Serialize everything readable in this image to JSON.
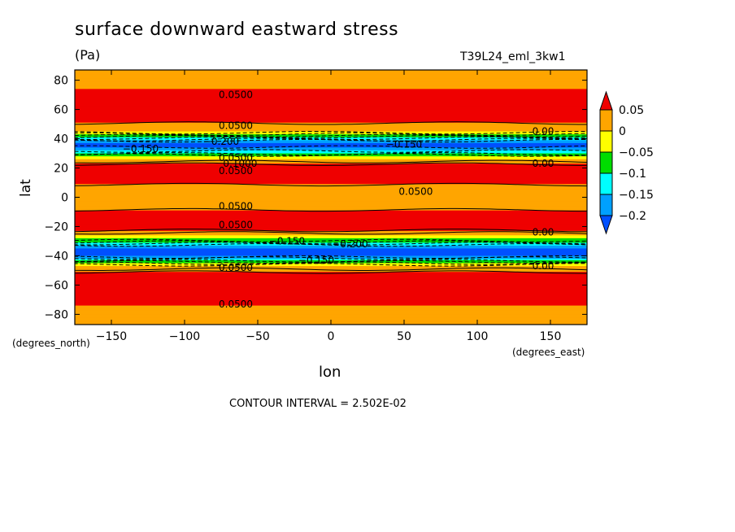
{
  "header": {
    "title": "surface downward eastward stress",
    "units": "(Pa)",
    "run": "T39L24_eml_3kw1"
  },
  "axes": {
    "ylabel": "lat",
    "ylabel_units": "(degrees_north)",
    "xlabel": "lon",
    "xlabel_units": "(degrees_east)"
  },
  "footer": {
    "contour_interval": "CONTOUR INTERVAL = 2.502E-02"
  },
  "chart_data": {
    "type": "heatmap",
    "title": "surface downward eastward stress",
    "subtitle": "(Pa)",
    "xlabel": "lon",
    "ylabel": "lat",
    "xlim": [
      -175,
      175
    ],
    "ylim": [
      -87,
      87
    ],
    "xticks": [
      -150,
      -100,
      -50,
      0,
      50,
      100,
      150
    ],
    "xtick_labels": [
      "−150",
      "−100",
      "−50",
      "0",
      "50",
      "100",
      "150"
    ],
    "yticks": [
      80,
      60,
      40,
      20,
      0,
      -20,
      -40,
      -60,
      -80
    ],
    "ytick_labels": [
      "80",
      "60",
      "40",
      "20",
      "0",
      "−20",
      "−40",
      "−60",
      "−80"
    ],
    "colorbar": {
      "levels": [
        "0.05",
        "0",
        "−0.05",
        "−0.1",
        "−0.15",
        "−0.2"
      ],
      "colors": [
        "#ef0000",
        "#ffa500",
        "#ffff00",
        "#00dd00",
        "#00ffff",
        "#00a0ff",
        "#0050ff"
      ]
    },
    "zonal_profile": [
      {
        "lat": 87,
        "value": 0.03
      },
      {
        "lat": 78,
        "value": 0.04
      },
      {
        "lat": 70,
        "value": 0.06
      },
      {
        "lat": 60,
        "value": 0.07
      },
      {
        "lat": 52,
        "value": 0.06
      },
      {
        "lat": 48,
        "value": 0.03
      },
      {
        "lat": 45,
        "value": 0.0
      },
      {
        "lat": 42,
        "value": -0.08
      },
      {
        "lat": 38,
        "value": -0.19
      },
      {
        "lat": 35,
        "value": -0.21
      },
      {
        "lat": 31,
        "value": -0.14
      },
      {
        "lat": 28,
        "value": -0.05
      },
      {
        "lat": 26,
        "value": 0.0
      },
      {
        "lat": 22,
        "value": 0.06
      },
      {
        "lat": 14,
        "value": 0.07
      },
      {
        "lat": 6,
        "value": 0.04
      },
      {
        "lat": 0,
        "value": 0.03
      },
      {
        "lat": -6,
        "value": 0.04
      },
      {
        "lat": -14,
        "value": 0.07
      },
      {
        "lat": -22,
        "value": 0.06
      },
      {
        "lat": -26,
        "value": 0.0
      },
      {
        "lat": -29,
        "value": -0.06
      },
      {
        "lat": -33,
        "value": -0.16
      },
      {
        "lat": -36,
        "value": -0.22
      },
      {
        "lat": -40,
        "value": -0.2
      },
      {
        "lat": -44,
        "value": -0.08
      },
      {
        "lat": -47,
        "value": 0.0
      },
      {
        "lat": -52,
        "value": 0.06
      },
      {
        "lat": -62,
        "value": 0.08
      },
      {
        "lat": -70,
        "value": 0.06
      },
      {
        "lat": -78,
        "value": 0.04
      },
      {
        "lat": -87,
        "value": 0.02
      }
    ],
    "contour_labels": [
      {
        "text": "0.0500",
        "lon": -65,
        "lat": 70
      },
      {
        "text": "0.0500",
        "lon": -65,
        "lat": 49
      },
      {
        "text": "−0.200",
        "lon": -75,
        "lat": 38
      },
      {
        "text": "−0.150",
        "lon": -130,
        "lat": 33
      },
      {
        "text": "−0.150",
        "lon": 50,
        "lat": 36
      },
      {
        "text": "0.00",
        "lon": 145,
        "lat": 45
      },
      {
        "text": "0.0500",
        "lon": -65,
        "lat": 27
      },
      {
        "text": "0.1000",
        "lon": -62,
        "lat": 23
      },
      {
        "text": "0.0500",
        "lon": -65,
        "lat": 18
      },
      {
        "text": "0.00",
        "lon": 145,
        "lat": 23
      },
      {
        "text": "0.0500",
        "lon": 58,
        "lat": 4
      },
      {
        "text": "0.0500",
        "lon": -65,
        "lat": -6
      },
      {
        "text": "0.0500",
        "lon": -65,
        "lat": -19
      },
      {
        "text": "0.00",
        "lon": 145,
        "lat": -24
      },
      {
        "text": "−0.150",
        "lon": -30,
        "lat": -30
      },
      {
        "text": "−0.200",
        "lon": 13,
        "lat": -32
      },
      {
        "text": "−0.150",
        "lon": -10,
        "lat": -43
      },
      {
        "text": "0.0500",
        "lon": -65,
        "lat": -48
      },
      {
        "text": "0.00",
        "lon": 145,
        "lat": -47
      },
      {
        "text": "0.0500",
        "lon": -65,
        "lat": -73
      }
    ]
  }
}
